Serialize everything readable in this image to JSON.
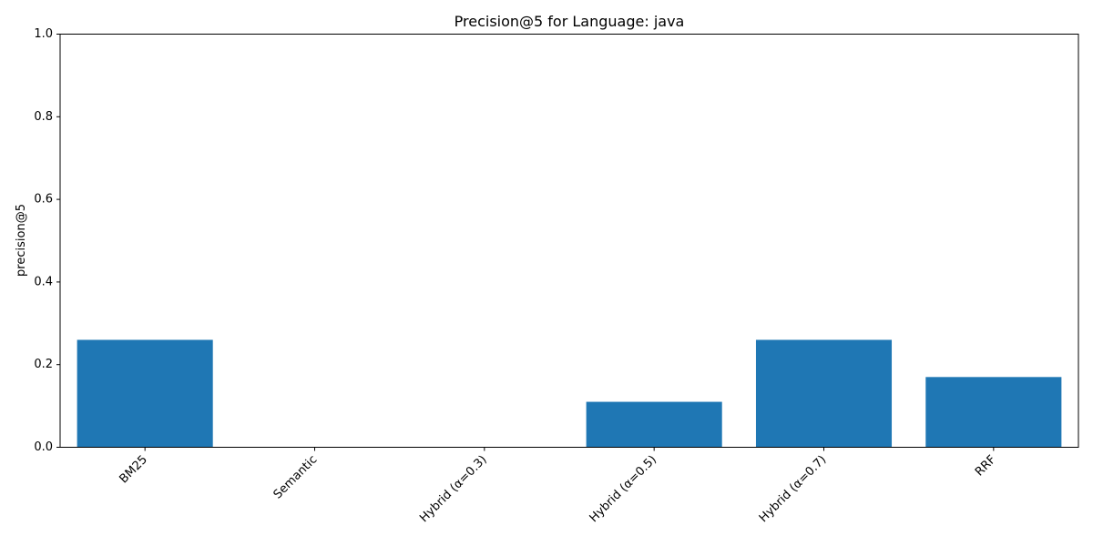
{
  "chart_data": {
    "type": "bar",
    "title": "Precision@5 for Language: java",
    "xlabel": "",
    "ylabel": "precision@5",
    "categories": [
      "BM25",
      "Semantic",
      "Hybrid (α=0.3)",
      "Hybrid (α=0.5)",
      "Hybrid (α=0.7)",
      "RRF"
    ],
    "values": [
      0.26,
      0.0,
      0.0,
      0.11,
      0.26,
      0.17
    ],
    "ylim": [
      0,
      1.0
    ],
    "yticks": [
      0.0,
      0.2,
      0.4,
      0.6,
      0.8,
      1.0
    ],
    "ytick_labels": [
      "0.0",
      "0.2",
      "0.4",
      "0.6",
      "0.8",
      "1.0"
    ],
    "x_tick_rotation_deg": 45,
    "grid": false,
    "legend": "none",
    "bar_color": "#1f77b4"
  }
}
